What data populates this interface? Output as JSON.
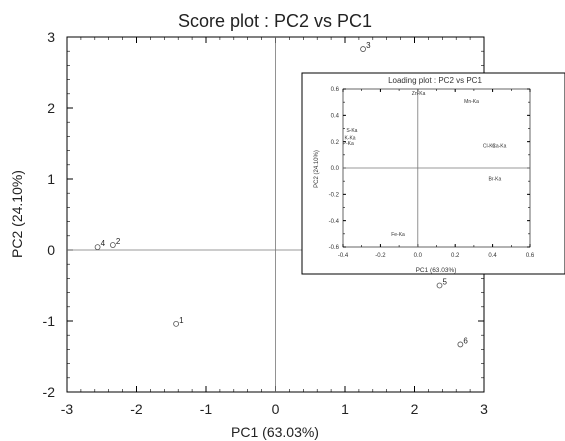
{
  "chart_data": [
    {
      "type": "scatter",
      "title": "Score plot :  PC2  vs PC1",
      "xlabel": "PC1 (63.03%)",
      "ylabel": "PC2 (24.10%)",
      "xlim": [
        -3,
        3
      ],
      "ylim": [
        -2,
        3
      ],
      "xticks": [
        -3,
        -2,
        -1,
        0,
        1,
        2,
        3
      ],
      "yticks": [
        -2,
        -1,
        0,
        1,
        2,
        3
      ],
      "grid": false,
      "zero_lines": true,
      "marker": "open-circle",
      "color": "#555555",
      "points": [
        {
          "label": "1",
          "x": -1.43,
          "y": -1.04
        },
        {
          "label": "2",
          "x": -2.34,
          "y": 0.07
        },
        {
          "label": "3",
          "x": 1.26,
          "y": 2.83
        },
        {
          "label": "4",
          "x": -2.56,
          "y": 0.04
        },
        {
          "label": "5",
          "x": 2.36,
          "y": -0.5
        },
        {
          "label": "6",
          "x": 2.66,
          "y": -1.33
        }
      ]
    },
    {
      "type": "scatter",
      "title": "Loading plot :  PC2  vs PC1",
      "xlabel": "PC1 (63.03%)",
      "ylabel": "PC2 (24.10%)",
      "xlim": [
        -0.4,
        0.6
      ],
      "ylim": [
        -0.6,
        0.6
      ],
      "xticks": [
        -0.4,
        -0.2,
        0.0,
        0.2,
        0.4,
        0.6
      ],
      "xtick_labels": [
        "-0.4",
        "-0.2",
        "0.0",
        "0.2",
        "0.4",
        "0.6"
      ],
      "yticks": [
        -0.6,
        -0.4,
        -0.2,
        0.0,
        0.2,
        0.4,
        0.6
      ],
      "ytick_labels": [
        "-0.6",
        "-0.4",
        "-0.2",
        "0.0",
        "0.2",
        "0.4",
        "0.6"
      ],
      "grid": false,
      "zero_lines": true,
      "legend_position": "inset top-right",
      "points": [
        {
          "label": "Zn-Ka",
          "x": 0.0,
          "y": 0.57
        },
        {
          "label": "Mn-Ka",
          "x": 0.28,
          "y": 0.51
        },
        {
          "label": "S-Ka",
          "x": -0.35,
          "y": 0.29
        },
        {
          "label": "K-Ka",
          "x": -0.36,
          "y": 0.23
        },
        {
          "label": "P-Ka",
          "x": -0.37,
          "y": 0.19
        },
        {
          "label": "Cl-Ka",
          "x": 0.38,
          "y": 0.17
        },
        {
          "label": "Ca-Ka",
          "x": 0.43,
          "y": 0.17
        },
        {
          "label": "Br-Ka",
          "x": 0.41,
          "y": -0.08
        },
        {
          "label": "Fe-Ka",
          "x": -0.11,
          "y": -0.5
        }
      ]
    }
  ]
}
